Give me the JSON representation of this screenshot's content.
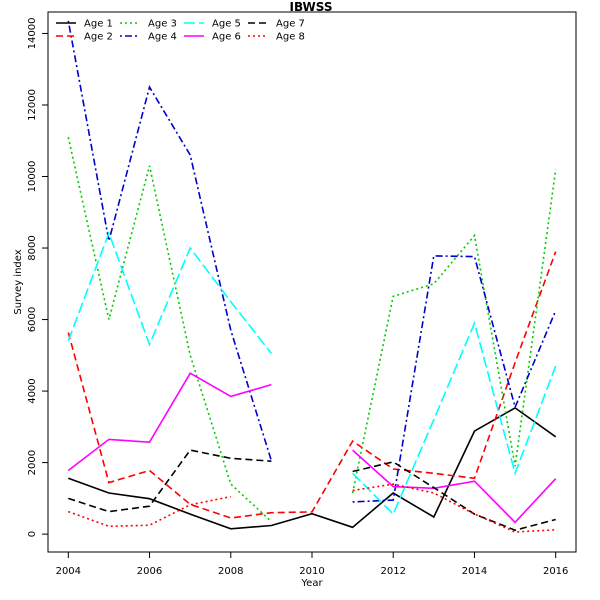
{
  "chart_data": {
    "type": "line",
    "title": "IBWSS",
    "xlabel": "Year",
    "ylabel": "Survey index",
    "xlim": [
      2003.5,
      2016.5
    ],
    "ylim": [
      -500,
      14600
    ],
    "x_ticks": [
      2004,
      2006,
      2008,
      2010,
      2012,
      2014,
      2016
    ],
    "y_ticks": [
      0,
      2000,
      4000,
      6000,
      8000,
      10000,
      12000,
      14000
    ],
    "legend_position": "top-left",
    "grid": false,
    "series": [
      {
        "name": "Age 1",
        "color": "#000000",
        "dash": "solid",
        "points": [
          [
            2004,
            1560
          ],
          [
            2005,
            1150
          ],
          [
            2006,
            990
          ],
          [
            2007,
            560
          ],
          [
            2008,
            150
          ],
          [
            2009,
            240
          ],
          [
            2010,
            570
          ],
          [
            2011,
            190
          ],
          [
            2012,
            1150
          ],
          [
            2013,
            480
          ],
          [
            2014,
            2880
          ],
          [
            2015,
            3530
          ],
          [
            2016,
            2720
          ]
        ]
      },
      {
        "name": "Age 2",
        "color": "#ff0000",
        "dash": "dashed",
        "points": [
          [
            2004,
            5640
          ],
          [
            2005,
            1440
          ],
          [
            2006,
            1780
          ],
          [
            2007,
            830
          ],
          [
            2008,
            450
          ],
          [
            2009,
            600
          ],
          [
            2010,
            620
          ],
          [
            2011,
            2600
          ],
          [
            2012,
            1820
          ],
          [
            2013,
            1700
          ],
          [
            2014,
            1560
          ],
          [
            2015,
            4800
          ],
          [
            2016,
            7900
          ]
        ]
      },
      {
        "name": "Age 3",
        "color": "#00cc00",
        "dash": "dotted",
        "points": [
          [
            2004,
            11100
          ],
          [
            2005,
            6000
          ],
          [
            2006,
            10300
          ],
          [
            2007,
            5000
          ],
          [
            2008,
            1400
          ],
          [
            2009,
            350
          ],
          [
            2010,
            null
          ],
          [
            2011,
            1150
          ],
          [
            2012,
            6650
          ],
          [
            2013,
            7000
          ],
          [
            2014,
            8350
          ],
          [
            2015,
            1900
          ],
          [
            2016,
            10200
          ]
        ]
      },
      {
        "name": "Age 4",
        "color": "#0000cc",
        "dash": "dotdash",
        "points": [
          [
            2004,
            14350
          ],
          [
            2005,
            8200
          ],
          [
            2006,
            12500
          ],
          [
            2007,
            10600
          ],
          [
            2008,
            5700
          ],
          [
            2009,
            2050
          ],
          [
            2010,
            null
          ],
          [
            2011,
            900
          ],
          [
            2012,
            950
          ],
          [
            2013,
            7780
          ],
          [
            2014,
            7760
          ],
          [
            2015,
            3550
          ],
          [
            2016,
            6250
          ]
        ]
      },
      {
        "name": "Age 5",
        "color": "#00ffff",
        "dash": "longdash",
        "points": [
          [
            2004,
            5400
          ],
          [
            2005,
            8420
          ],
          [
            2006,
            5300
          ],
          [
            2007,
            8000
          ],
          [
            2008,
            6500
          ],
          [
            2009,
            5050
          ],
          [
            2010,
            null
          ],
          [
            2011,
            1700
          ],
          [
            2012,
            560
          ],
          [
            2013,
            3200
          ],
          [
            2014,
            5900
          ],
          [
            2015,
            1700
          ],
          [
            2016,
            4700
          ]
        ]
      },
      {
        "name": "Age 6",
        "color": "#ff00ff",
        "dash": "solid",
        "points": [
          [
            2004,
            1780
          ],
          [
            2005,
            2650
          ],
          [
            2006,
            2570
          ],
          [
            2007,
            4500
          ],
          [
            2008,
            3850
          ],
          [
            2009,
            4180
          ],
          [
            2010,
            null
          ],
          [
            2011,
            2350
          ],
          [
            2012,
            1330
          ],
          [
            2013,
            1280
          ],
          [
            2014,
            1480
          ],
          [
            2015,
            330
          ],
          [
            2016,
            1550
          ]
        ]
      },
      {
        "name": "Age 7",
        "color": "#000000",
        "dash": "dashed",
        "points": [
          [
            2004,
            1000
          ],
          [
            2005,
            630
          ],
          [
            2006,
            780
          ],
          [
            2007,
            2350
          ],
          [
            2008,
            2120
          ],
          [
            2009,
            2040
          ],
          [
            2010,
            null
          ],
          [
            2011,
            1750
          ],
          [
            2012,
            2020
          ],
          [
            2013,
            1300
          ],
          [
            2014,
            560
          ],
          [
            2015,
            110
          ],
          [
            2016,
            410
          ]
        ]
      },
      {
        "name": "Age 8",
        "color": "#ff0000",
        "dash": "dotted",
        "points": [
          [
            2004,
            630
          ],
          [
            2005,
            220
          ],
          [
            2006,
            250
          ],
          [
            2007,
            820
          ],
          [
            2008,
            1050
          ],
          [
            2009,
            null
          ],
          [
            2010,
            null
          ],
          [
            2011,
            1220
          ],
          [
            2012,
            1400
          ],
          [
            2013,
            1150
          ],
          [
            2014,
            560
          ],
          [
            2015,
            60
          ],
          [
            2016,
            120
          ]
        ]
      }
    ]
  }
}
